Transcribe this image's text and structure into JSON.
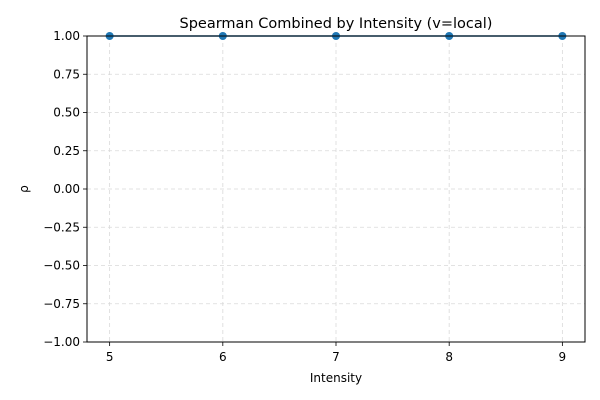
{
  "chart_data": {
    "type": "line",
    "title": "Spearman Combined by Intensity (v=local)",
    "xlabel": "Intensity",
    "ylabel": "ρ",
    "x": [
      5,
      6,
      7,
      8,
      9
    ],
    "series": [
      {
        "values": [
          1.0,
          1.0,
          1.0,
          1.0,
          1.0
        ],
        "color": "#1f77b4",
        "marker": "circle"
      }
    ],
    "xlim": [
      4.8,
      9.2
    ],
    "ylim": [
      -1.0,
      1.0
    ],
    "xticks": [
      "5",
      "6",
      "7",
      "8",
      "9"
    ],
    "yticks": [
      "−1.00",
      "−0.75",
      "−0.50",
      "−0.25",
      "0.00",
      "0.25",
      "0.50",
      "0.75",
      "1.00"
    ],
    "grid": true,
    "grid_style": "dashed"
  }
}
